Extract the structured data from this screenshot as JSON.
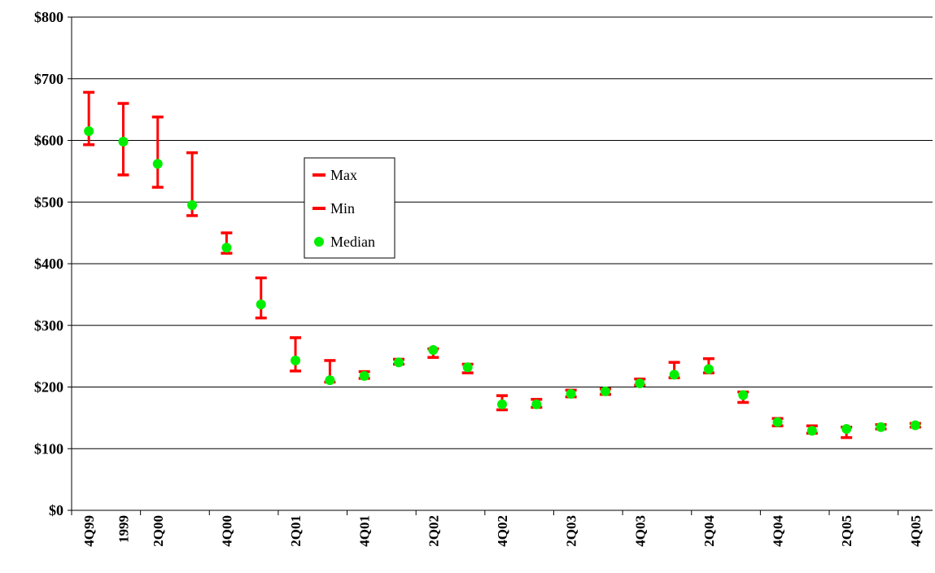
{
  "chart_data": {
    "type": "scatter",
    "title": "",
    "xlabel": "",
    "ylabel": "",
    "ylim": [
      0,
      800
    ],
    "y_tick_labels": [
      "$0",
      "$100",
      "$200",
      "$300",
      "$400",
      "$500",
      "$600",
      "$700",
      "$800"
    ],
    "y_tick_values": [
      0,
      100,
      200,
      300,
      400,
      500,
      600,
      700,
      800
    ],
    "categories": [
      "4Q99",
      "1999",
      "2Q00",
      "",
      "4Q00",
      "",
      "2Q01",
      "",
      "4Q01",
      "",
      "2Q02",
      "",
      "4Q02",
      "",
      "2Q03",
      "",
      "4Q03",
      "",
      "2Q04",
      "",
      "4Q04",
      "",
      "2Q05",
      "",
      "4Q05"
    ],
    "grid": true,
    "legend_position": "center-left",
    "series": [
      {
        "name": "Max",
        "color": "#ff0000",
        "marker": "dash",
        "values": [
          678,
          660,
          638,
          580,
          450,
          377,
          280,
          243,
          225,
          245,
          262,
          237,
          186,
          180,
          195,
          197,
          213,
          240,
          246,
          192,
          149,
          137,
          135,
          139,
          141
        ]
      },
      {
        "name": "Min",
        "color": "#ff0000",
        "marker": "dash",
        "values": [
          593,
          544,
          524,
          478,
          417,
          312,
          226,
          208,
          214,
          237,
          248,
          223,
          163,
          167,
          184,
          188,
          203,
          215,
          223,
          175,
          137,
          125,
          118,
          132,
          135
        ]
      },
      {
        "name": "Median",
        "color": "#00ee00",
        "marker": "circle",
        "values": [
          615,
          598,
          562,
          495,
          426,
          334,
          243,
          211,
          218,
          240,
          260,
          232,
          172,
          172,
          189,
          193,
          206,
          220,
          229,
          187,
          143,
          129,
          132,
          135,
          138
        ]
      }
    ]
  }
}
